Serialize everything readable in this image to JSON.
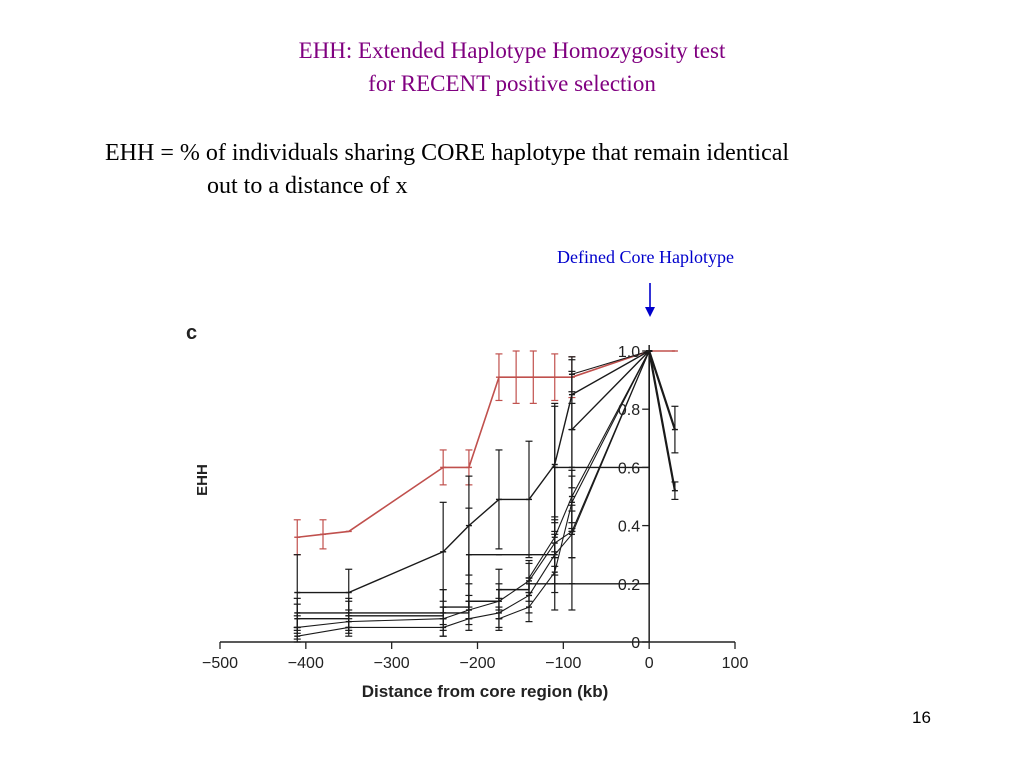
{
  "slide": {
    "title_line1": "EHH:  Extended Haplotype Homozygosity test",
    "title_line2": "for RECENT positive selection",
    "definition_line1": "EHH = % of individuals sharing CORE haplotype that remain identical",
    "definition_line2": "out to a distance of x",
    "core_label": "Defined Core Haplotype",
    "slide_number": "16",
    "colors": {
      "title": "#800080",
      "core_label": "#0000cc",
      "red_series": "#c0504d",
      "black_series": "#1a1a1a"
    }
  },
  "chart_data": {
    "type": "line",
    "panel_label": "c",
    "xlabel": "Distance from core region (kb)",
    "ylabel": "EHH",
    "xlim": [
      -500,
      100
    ],
    "ylim": [
      0,
      1.0
    ],
    "xticks": [
      -500,
      -400,
      -300,
      -200,
      -100,
      0,
      100
    ],
    "xtick_labels": [
      "−500",
      "−400",
      "−300",
      "−200",
      "−100",
      "0",
      "100"
    ],
    "yticks": [
      0,
      0.2,
      0.4,
      0.6,
      0.8,
      1.0
    ],
    "ytick_labels": [
      "0",
      "0.2",
      "0.4",
      "0.6",
      "0.8",
      "1.0"
    ],
    "grid": false,
    "series": [
      {
        "color": "red",
        "line_width": 1.6,
        "points": [
          [
            -410,
            0.36
          ],
          [
            -380,
            0.37
          ],
          [
            -350,
            0.38
          ],
          [
            -240,
            0.6
          ],
          [
            -210,
            0.6
          ],
          [
            -175,
            0.91
          ],
          [
            -155,
            0.91
          ],
          [
            -135,
            0.91
          ],
          [
            -110,
            0.91
          ],
          [
            -90,
            0.91
          ],
          [
            0,
            1.0
          ],
          [
            30,
            1.0
          ]
        ],
        "errors": [
          0.06,
          0.05,
          0,
          0.06,
          0.06,
          0.08,
          0.09,
          0.09,
          0.08,
          0.07,
          0,
          0
        ],
        "step": false
      },
      {
        "color": "black",
        "line_width": 2.2,
        "points": [
          [
            0,
            1.0
          ],
          [
            30,
            0.73
          ]
        ],
        "errors": [
          0,
          0.08
        ],
        "step": false
      },
      {
        "color": "black",
        "line_width": 2.2,
        "points": [
          [
            0,
            1.0
          ],
          [
            30,
            0.52
          ]
        ],
        "errors": [
          0,
          0.03
        ],
        "step": false
      },
      {
        "color": "black",
        "line_width": 1.4,
        "points": [
          [
            -410,
            0.17
          ],
          [
            -350,
            0.17
          ],
          [
            -240,
            0.31
          ],
          [
            -210,
            0.4
          ],
          [
            -175,
            0.49
          ],
          [
            -140,
            0.49
          ],
          [
            -110,
            0.61
          ],
          [
            -90,
            0.85
          ],
          [
            0,
            1.0
          ]
        ],
        "errors": [
          0.13,
          0.08,
          0.17,
          0.17,
          0.17,
          0.2,
          0.2,
          0.12,
          0
        ],
        "step": false
      },
      {
        "color": "black",
        "line_width": 1.4,
        "points": [
          [
            -410,
            0.1
          ],
          [
            -350,
            0.1
          ],
          [
            -240,
            0.1
          ],
          [
            -210,
            0.3
          ],
          [
            -175,
            0.3
          ],
          [
            -140,
            0.3
          ],
          [
            -110,
            0.6
          ],
          [
            -90,
            0.6
          ],
          [
            0,
            1.0
          ]
        ],
        "errors": [
          0.05,
          0.05,
          0.08,
          0.16,
          0,
          0,
          0.22,
          0.22,
          0
        ],
        "step": true
      },
      {
        "color": "black",
        "line_width": 1.4,
        "points": [
          [
            -410,
            0.08
          ],
          [
            -350,
            0.09
          ],
          [
            -240,
            0.12
          ],
          [
            -210,
            0.14
          ],
          [
            -175,
            0.18
          ],
          [
            -140,
            0.2
          ],
          [
            -110,
            0.2
          ],
          [
            -90,
            0.2
          ],
          [
            0,
            1.0
          ]
        ],
        "errors": [
          0.05,
          0.05,
          0.06,
          0.06,
          0.07,
          0,
          0.09,
          0.09,
          0
        ],
        "step": true
      },
      {
        "color": "black",
        "line_width": 1.1,
        "points": [
          [
            -410,
            0.05
          ],
          [
            -350,
            0.07
          ],
          [
            -240,
            0.08
          ],
          [
            -210,
            0.11
          ],
          [
            -175,
            0.14
          ],
          [
            -140,
            0.21
          ],
          [
            -110,
            0.34
          ],
          [
            -90,
            0.38
          ],
          [
            0,
            1.0
          ]
        ],
        "errors": [
          0.04,
          0.04,
          0.04,
          0.05,
          0.06,
          0.07,
          0.08,
          0.09,
          0
        ],
        "step": false
      },
      {
        "color": "black",
        "line_width": 1.1,
        "points": [
          [
            -410,
            0.02
          ],
          [
            -350,
            0.05
          ],
          [
            -240,
            0.05
          ],
          [
            -210,
            0.08
          ],
          [
            -175,
            0.1
          ],
          [
            -140,
            0.16
          ],
          [
            -110,
            0.3
          ],
          [
            -90,
            0.37
          ],
          [
            0,
            1.0
          ]
        ],
        "errors": [
          0.03,
          0.03,
          0.03,
          0.04,
          0.05,
          0.06,
          0.07,
          0.08,
          0
        ],
        "step": false
      },
      {
        "color": "black",
        "line_width": 1.1,
        "points": [
          [
            -175,
            0.08
          ],
          [
            -140,
            0.12
          ],
          [
            -110,
            0.24
          ],
          [
            -90,
            0.48
          ],
          [
            0,
            1.0
          ]
        ],
        "errors": [
          0.04,
          0.05,
          0.07,
          0.09,
          0
        ],
        "step": false
      },
      {
        "color": "black",
        "line_width": 1.1,
        "points": [
          [
            -140,
            0.22
          ],
          [
            -110,
            0.36
          ],
          [
            -90,
            0.5
          ],
          [
            0,
            1.0
          ]
        ],
        "errors": [
          0.05,
          0.07,
          0.09,
          0
        ],
        "step": false
      },
      {
        "color": "black",
        "line_width": 1.1,
        "points": [
          [
            -90,
            0.92
          ],
          [
            0,
            1.0
          ]
        ],
        "errors": [
          0.06,
          0
        ],
        "step": false
      },
      {
        "color": "black",
        "line_width": 1.4,
        "points": [
          [
            -90,
            0.73
          ],
          [
            0,
            1.0
          ]
        ],
        "errors": [
          0.2,
          0
        ],
        "step": false
      }
    ]
  }
}
